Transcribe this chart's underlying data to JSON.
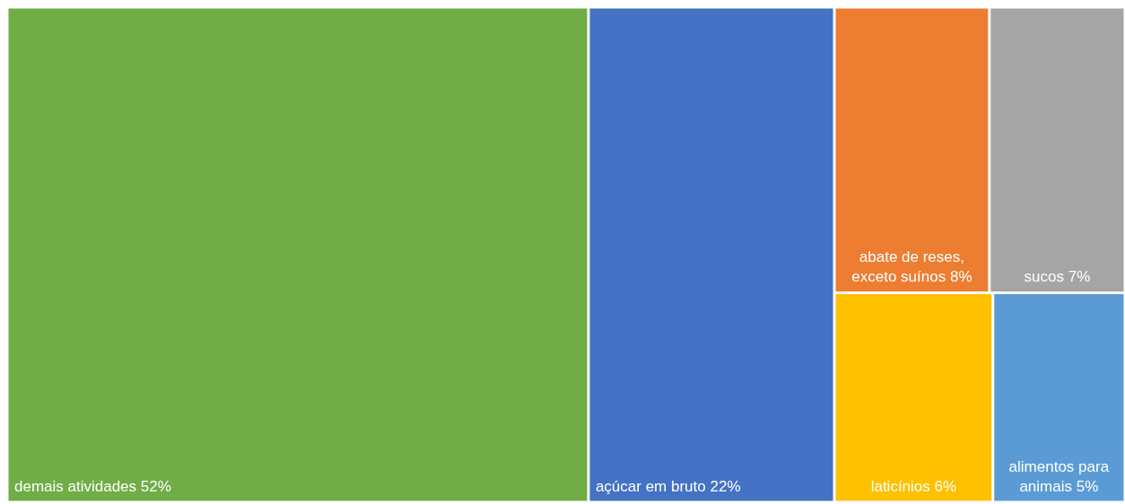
{
  "chart_data": {
    "type": "other",
    "categories": [
      "demais atividades",
      "açúcar em bruto",
      "abate de reses, exceto suínos",
      "sucos",
      "laticínios",
      "alimentos para animais"
    ],
    "values": [
      52,
      22,
      8,
      7,
      6,
      5
    ],
    "value_labels": [
      "52%",
      "22%",
      "8%",
      "7%",
      "6%",
      "5%"
    ],
    "colors": [
      "#70ad47",
      "#4472c4",
      "#ed7d31",
      "#a5a5a5",
      "#ffc000",
      "#5b9bd5"
    ]
  }
}
